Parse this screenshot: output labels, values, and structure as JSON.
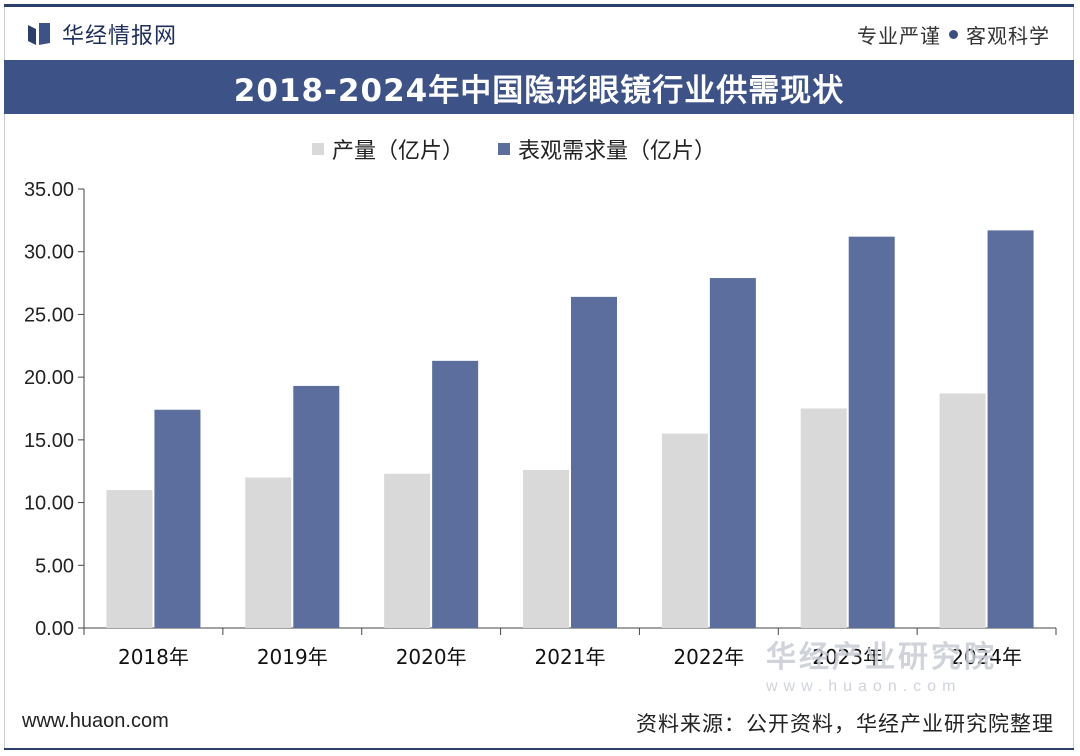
{
  "header": {
    "brand_name": "华经情报网",
    "slogan_left": "专业严谨",
    "slogan_right": "客观科学",
    "accent_color": "#3d5287"
  },
  "chart_data": {
    "type": "bar",
    "title": "2018-2024年中国隐形眼镜行业供需现状",
    "categories": [
      "2018年",
      "2019年",
      "2020年",
      "2021年",
      "2022年",
      "2023年",
      "2024年"
    ],
    "series": [
      {
        "name": "产量（亿片）",
        "color": "#d9d9d9",
        "values": [
          11.0,
          12.0,
          12.3,
          12.6,
          15.5,
          17.5,
          18.7
        ]
      },
      {
        "name": "表观需求量（亿片）",
        "color": "#5b6e9e",
        "values": [
          17.4,
          19.3,
          21.3,
          26.4,
          27.9,
          31.2,
          31.7
        ]
      }
    ],
    "y_ticks": [
      "0.00",
      "5.00",
      "10.00",
      "15.00",
      "20.00",
      "25.00",
      "30.00",
      "35.00"
    ],
    "ylim": [
      0,
      35
    ],
    "xlabel": "",
    "ylabel": "",
    "legend_position": "top",
    "grid": false
  },
  "footer": {
    "url": "www.huaon.com",
    "source": "资料来源：公开资料，华经产业研究院整理"
  },
  "watermark": {
    "name": "华经产业研究院",
    "url": "www.huaon.com"
  }
}
